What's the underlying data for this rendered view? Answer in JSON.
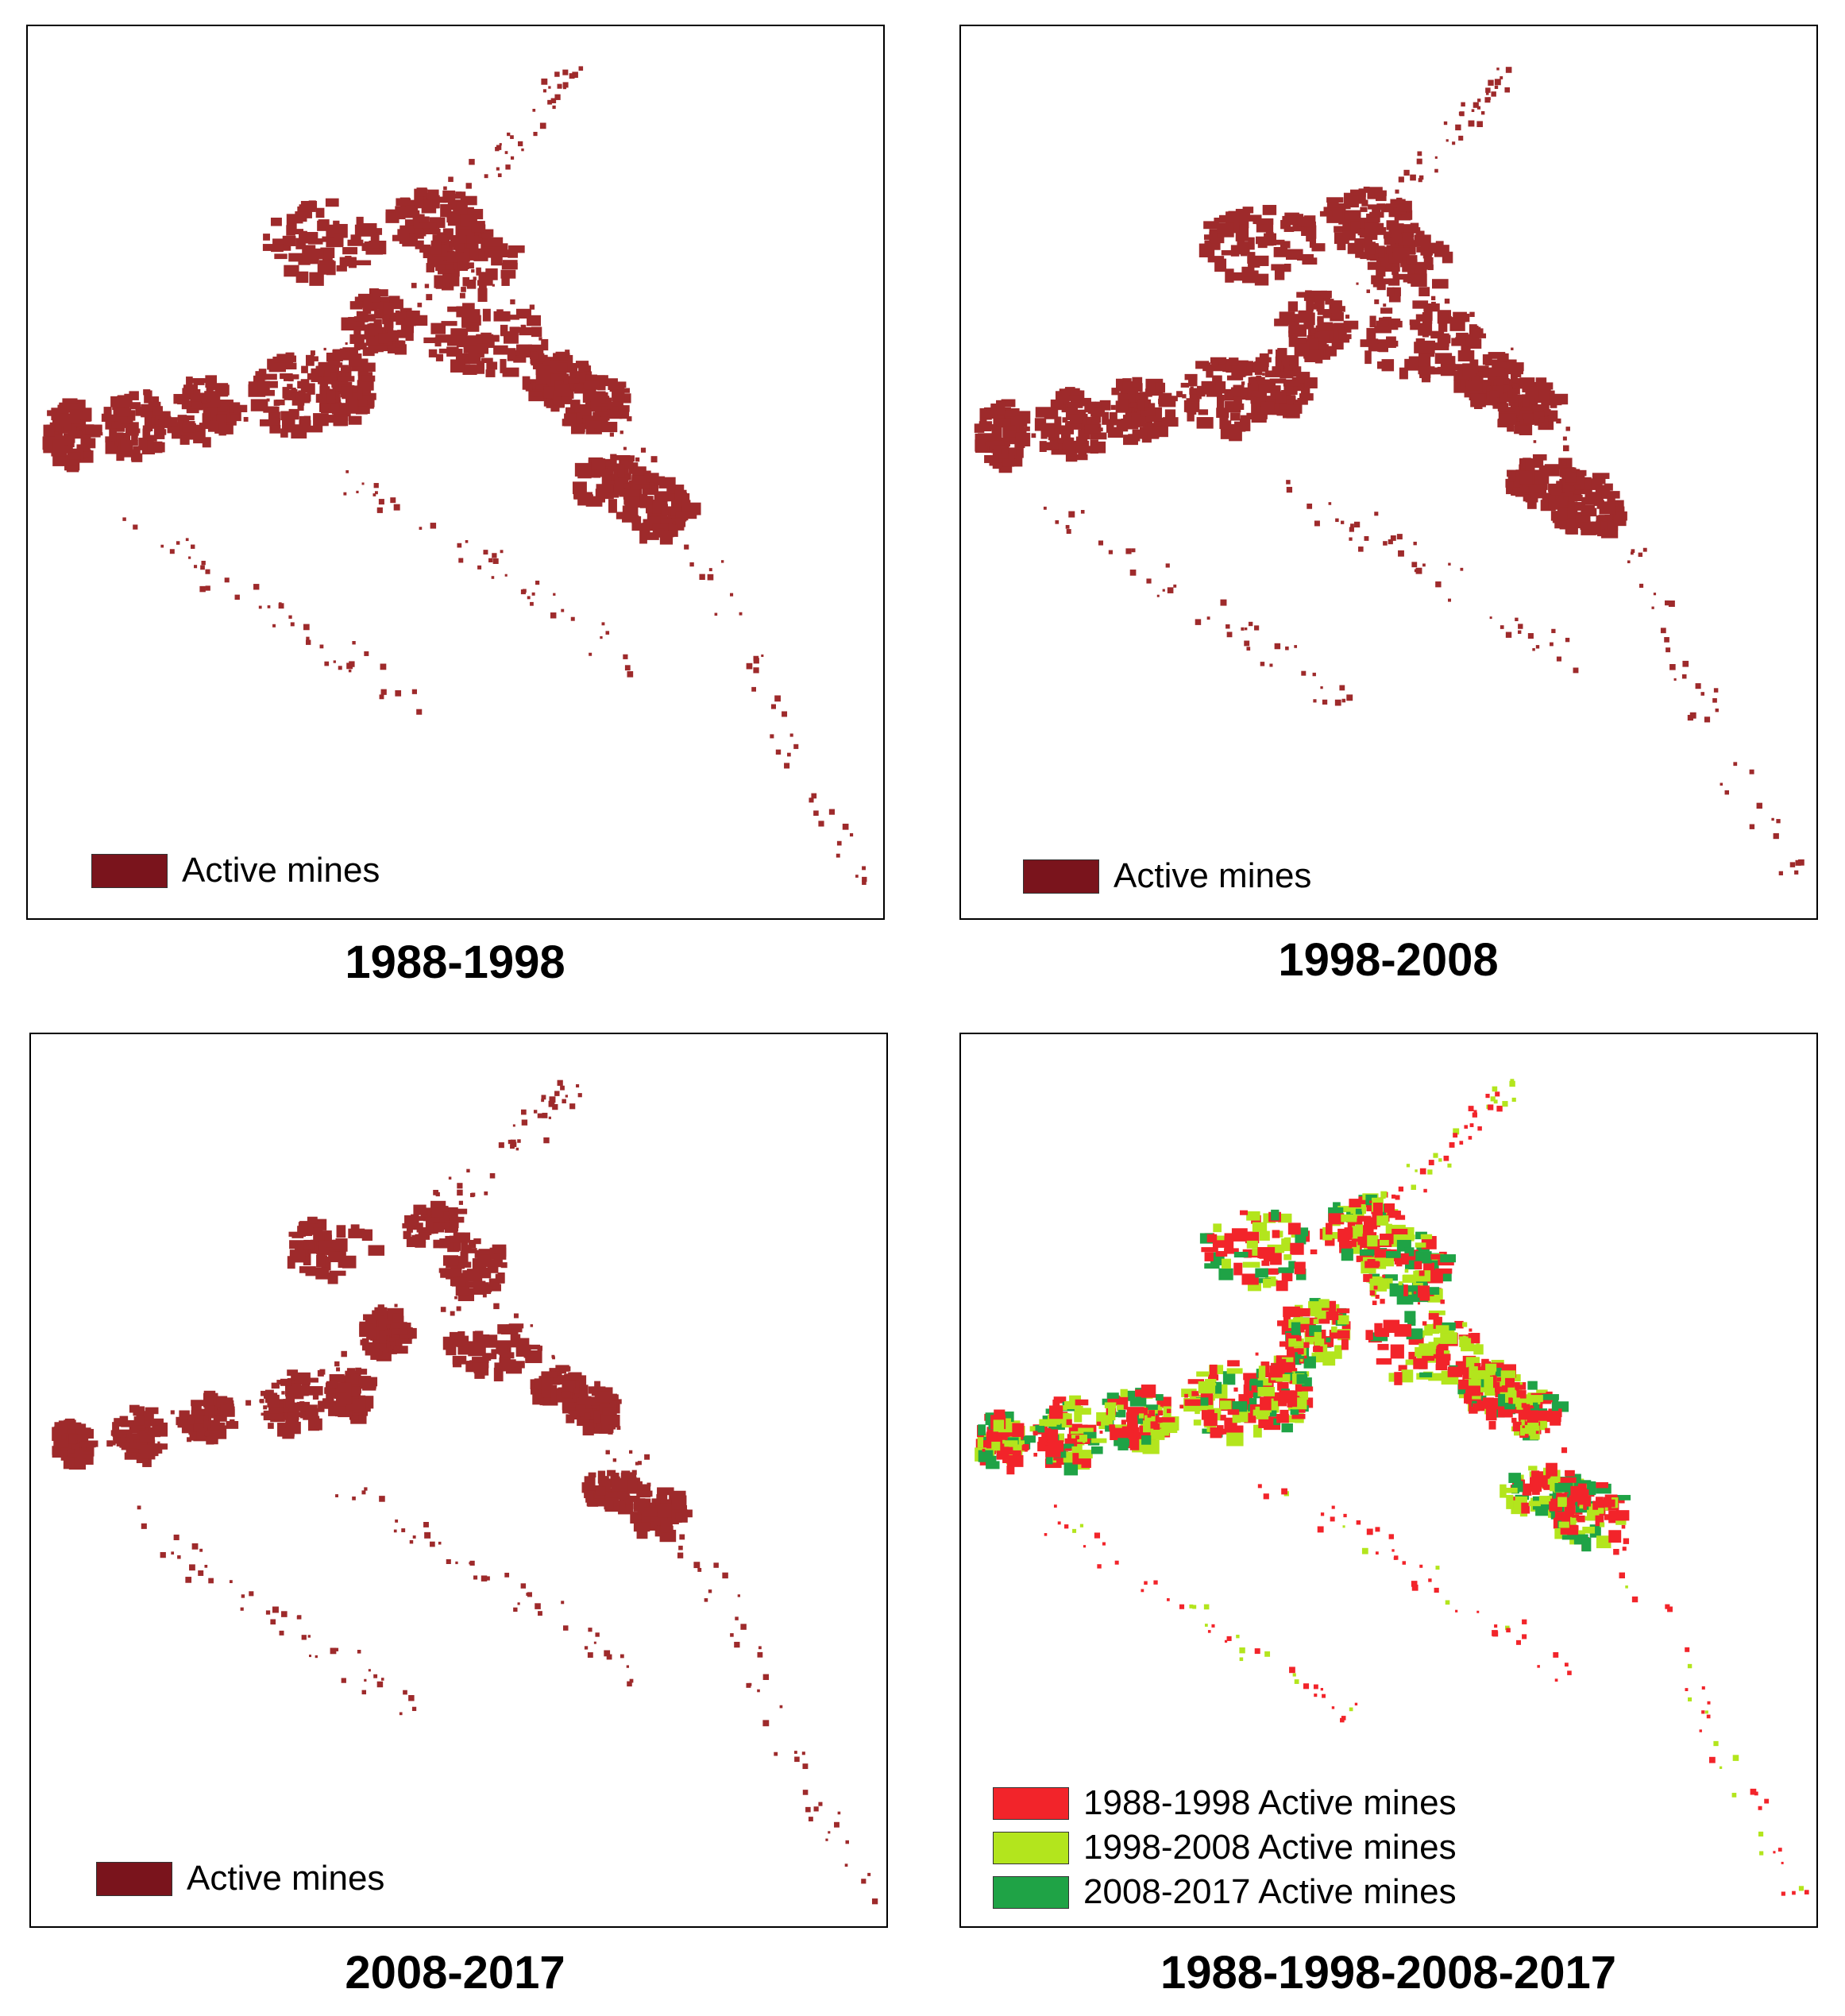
{
  "colors": {
    "active_mines": "#7a141c",
    "map_fill": "#9e2a2b",
    "period_1988_1998": "#f2242a",
    "period_1998_2008": "#b3e51d",
    "period_2008_2017": "#1fa346"
  },
  "panels": [
    {
      "caption": "1988-1998",
      "legend": [
        {
          "label": "Active mines",
          "color": "#7a141c"
        }
      ]
    },
    {
      "caption": "1998-2008",
      "legend": [
        {
          "label": "Active mines",
          "color": "#7a141c"
        }
      ]
    },
    {
      "caption": "2008-2017",
      "legend": [
        {
          "label": "Active mines",
          "color": "#7a141c"
        }
      ]
    },
    {
      "caption": "1988-1998-2008-2017",
      "legend": [
        {
          "label": "1988-1998 Active mines",
          "color": "#f2242a"
        },
        {
          "label": "1998-2008 Active mines",
          "color": "#b3e51d"
        },
        {
          "label": "2008-2017 Active mines",
          "color": "#1fa346"
        }
      ]
    }
  ]
}
